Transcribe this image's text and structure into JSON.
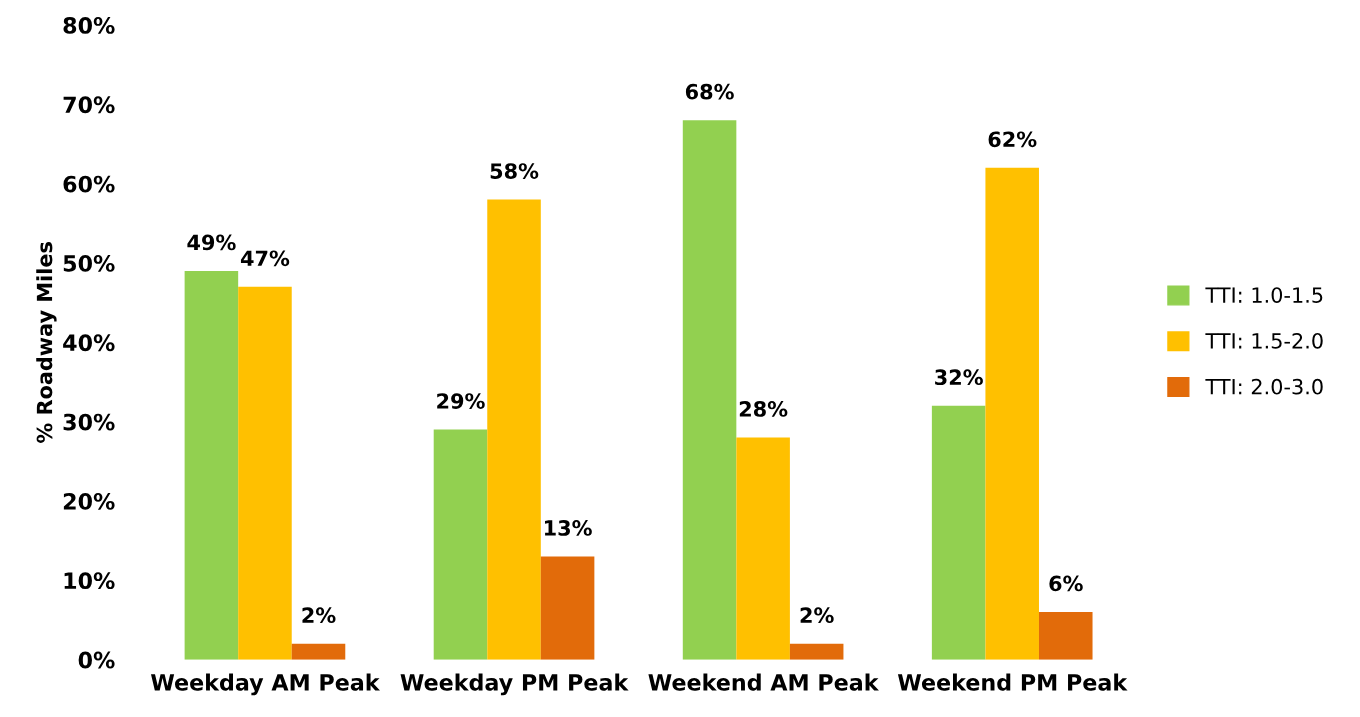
{
  "chart_data": {
    "type": "bar",
    "ylabel": "% Roadway Miles",
    "categories": [
      "Weekday AM Peak",
      "Weekday PM Peak",
      "Weekend AM Peak",
      "Weekend PM Peak"
    ],
    "series": [
      {
        "name": "TTI: 1.0-1.5",
        "color": "#92d050",
        "values": [
          49,
          29,
          68,
          32
        ],
        "value_labels": [
          "49%",
          "29%",
          "68%",
          "32%"
        ]
      },
      {
        "name": "TTI: 1.5-2.0",
        "color": "#ffc000",
        "values": [
          47,
          58,
          28,
          62
        ],
        "value_labels": [
          "47%",
          "58%",
          "28%",
          "62%"
        ]
      },
      {
        "name": "TTI: 2.0-3.0",
        "color": "#e26b0a",
        "values": [
          2,
          13,
          2,
          6
        ],
        "value_labels": [
          "2%",
          "13%",
          "2%",
          "6%"
        ]
      }
    ],
    "ylim": [
      0,
      80
    ],
    "yticks": [
      {
        "value": 0,
        "label": "0%"
      },
      {
        "value": 10,
        "label": "10%"
      },
      {
        "value": 20,
        "label": "20%"
      },
      {
        "value": 30,
        "label": "30%"
      },
      {
        "value": 40,
        "label": "40%"
      },
      {
        "value": 50,
        "label": "50%"
      },
      {
        "value": 60,
        "label": "60%"
      },
      {
        "value": 70,
        "label": "70%"
      },
      {
        "value": 80,
        "label": "80%"
      }
    ],
    "grid": false,
    "legend": "right"
  }
}
